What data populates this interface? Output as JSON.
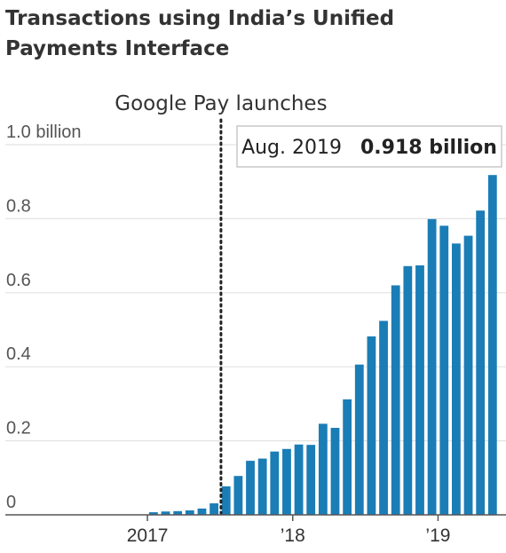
{
  "chart_data": {
    "type": "bar",
    "title": "Transactions using India’s Unified Payments Interface",
    "xlabel": "",
    "ylabel": "",
    "ylim": [
      0,
      1.0
    ],
    "y_ticks": [
      {
        "value": 0,
        "label": "0"
      },
      {
        "value": 0.2,
        "label": "0.2"
      },
      {
        "value": 0.4,
        "label": "0.4"
      },
      {
        "value": 0.6,
        "label": "0.6"
      },
      {
        "value": 0.8,
        "label": "0.8"
      },
      {
        "value": 1.0,
        "label": "1.0 billion"
      }
    ],
    "x_ticks": [
      {
        "index": -0.5,
        "label": "2017"
      },
      {
        "index": 11.5,
        "label": "’18"
      },
      {
        "index": 23.5,
        "label": "’19"
      }
    ],
    "categories": [
      "Apr 2017",
      "May 2017",
      "Jun 2017",
      "Jul 2017",
      "Aug 2017",
      "Sep 2017",
      "Oct 2017",
      "Nov 2017",
      "Dec 2017",
      "Jan 2018",
      "Feb 2018",
      "Mar 2018",
      "Apr 2018",
      "May 2018",
      "Jun 2018",
      "Jul 2018",
      "Aug 2018",
      "Sep 2018",
      "Oct 2018",
      "Nov 2018",
      "Dec 2018",
      "Jan 2019",
      "Feb 2019",
      "Mar 2019",
      "Apr 2019",
      "May 2019",
      "Jun 2019",
      "Jul 2019",
      "Aug 2019"
    ],
    "values": [
      0.007,
      0.009,
      0.01,
      0.012,
      0.017,
      0.031,
      0.077,
      0.105,
      0.146,
      0.152,
      0.171,
      0.178,
      0.19,
      0.189,
      0.246,
      0.235,
      0.312,
      0.406,
      0.482,
      0.524,
      0.62,
      0.672,
      0.674,
      0.799,
      0.781,
      0.733,
      0.754,
      0.822,
      0.918
    ],
    "bar_color": "#1a7db6",
    "annotation": {
      "label": "Google Pay launches",
      "position": 5.5
    },
    "callout": {
      "period": "Aug. 2019",
      "value_label": "0.918 billion"
    }
  }
}
